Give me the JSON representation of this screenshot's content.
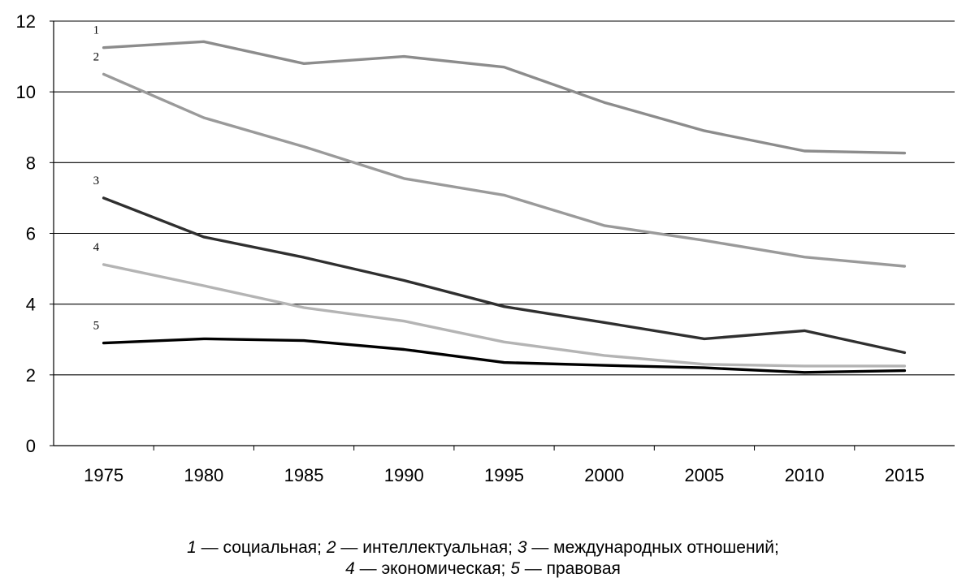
{
  "chart_data": {
    "type": "line",
    "x": [
      1975,
      1980,
      1985,
      1990,
      1995,
      2000,
      2005,
      2010,
      2015
    ],
    "xlim": [
      1972.5,
      2017.5
    ],
    "ylim": [
      0,
      12
    ],
    "yticks": [
      0,
      2,
      4,
      6,
      8,
      10,
      12
    ],
    "ytick_labels": [
      "0",
      "2",
      "4",
      "6",
      "8",
      "10",
      "12"
    ],
    "xtick_labels": [
      "1975",
      "1980",
      "1985",
      "1990",
      "1995",
      "2000",
      "2005",
      "2010",
      "2015"
    ],
    "gridlines_y": [
      2,
      4,
      6,
      8,
      10,
      12
    ],
    "grid": true,
    "series": [
      {
        "label": "1",
        "color": "#8c8c8c",
        "values": [
          11.25,
          11.42,
          10.8,
          11.0,
          10.7,
          9.7,
          8.9,
          8.33,
          8.27
        ]
      },
      {
        "label": "2",
        "color": "#9a9a9a",
        "values": [
          10.5,
          9.27,
          8.45,
          7.55,
          7.08,
          6.22,
          5.8,
          5.33,
          5.07
        ]
      },
      {
        "label": "3",
        "color": "#2f2f2f",
        "values": [
          7.0,
          5.9,
          5.32,
          4.67,
          3.93,
          3.48,
          3.02,
          3.25,
          2.63
        ]
      },
      {
        "label": "4",
        "color": "#b4b4b4",
        "values": [
          5.12,
          4.52,
          3.9,
          3.52,
          2.93,
          2.55,
          2.3,
          2.25,
          2.25
        ]
      },
      {
        "label": "5",
        "color": "#000000",
        "values": [
          2.9,
          3.02,
          2.97,
          2.72,
          2.35,
          2.27,
          2.2,
          2.07,
          2.12
        ]
      }
    ]
  },
  "caption": {
    "line1": [
      {
        "n": "1",
        "text": " — социальная; "
      },
      {
        "n": "2",
        "text": " — интеллектуальная; "
      },
      {
        "n": "3",
        "text": " — международных отношений;"
      }
    ],
    "line2": [
      {
        "n": "4",
        "text": " — экономическая; "
      },
      {
        "n": "5",
        "text": " — правовая"
      }
    ]
  }
}
